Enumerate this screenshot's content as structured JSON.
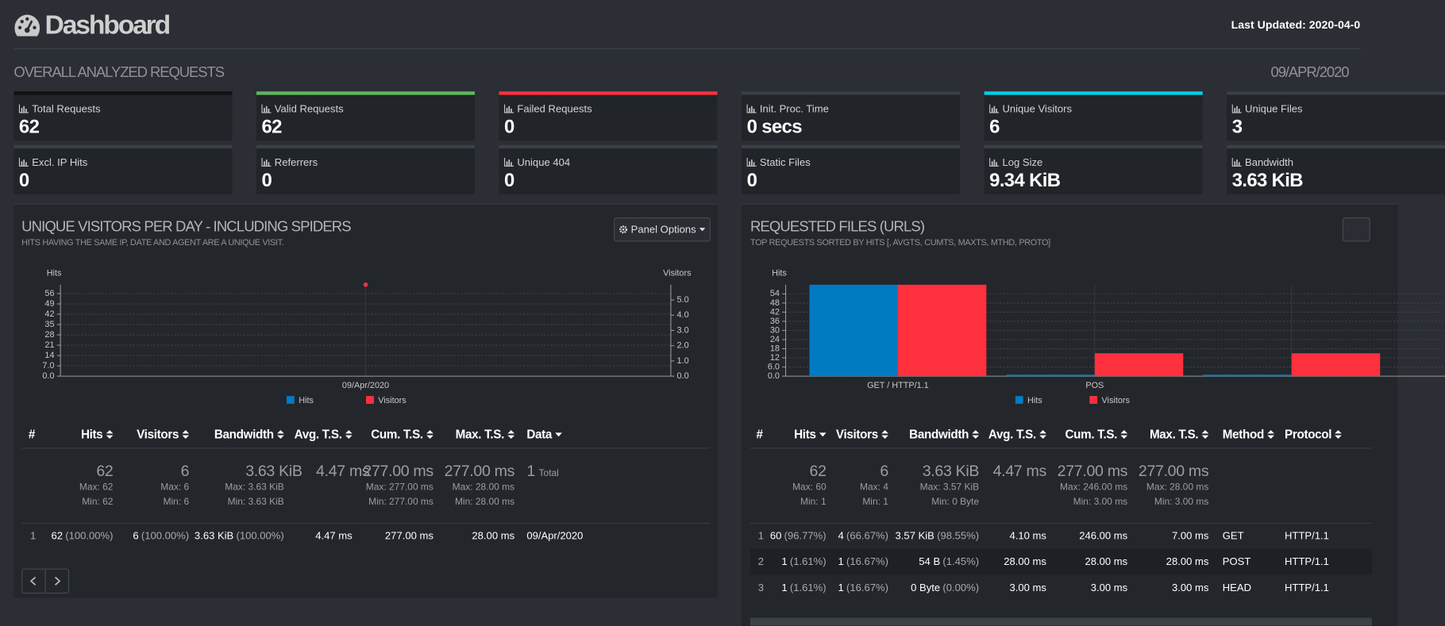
{
  "header": {
    "title": "Dashboard",
    "last_updated": "Last Updated: 2020-04-0"
  },
  "overview": {
    "title": "OVERALL ANALYZED REQUESTS",
    "date": "09/APR/2020",
    "cards": [
      {
        "label": "Total Requests",
        "value": "62",
        "color": "#101113"
      },
      {
        "label": "Valid Requests",
        "value": "62",
        "color": "#5cb85c"
      },
      {
        "label": "Failed Requests",
        "value": "0",
        "color": "#ff303e"
      },
      {
        "label": "Init. Proc. Time",
        "value": "0 secs",
        "color": "#3b3f46"
      },
      {
        "label": "Unique Visitors",
        "value": "6",
        "color": "#00d1e8"
      },
      {
        "label": "Unique Files",
        "value": "3",
        "color": "#3b3f46"
      },
      {
        "label": "Excl. IP Hits",
        "value": "0",
        "color": "#3b3f46"
      },
      {
        "label": "Referrers",
        "value": "0",
        "color": "#3b3f46"
      },
      {
        "label": "Unique 404",
        "value": "0",
        "color": "#3b3f46"
      },
      {
        "label": "Static Files",
        "value": "0",
        "color": "#3b3f46"
      },
      {
        "label": "Log Size",
        "value": "9.34 KiB",
        "color": "#3b3f46"
      },
      {
        "label": "Bandwidth",
        "value": "3.63 KiB",
        "color": "#3b3f46"
      }
    ]
  },
  "panels": [
    {
      "title": "UNIQUE VISITORS PER DAY - INCLUDING SPIDERS",
      "subtitle": "HITS HAVING THE SAME IP, DATE AND AGENT ARE A UNIQUE VISIT.",
      "button": "Panel Options",
      "chart": {
        "type": "line",
        "y_label": "Hits",
        "y2_label": "Visitors",
        "categories": [
          "09/Apr/2020"
        ],
        "series": [
          {
            "name": "Hits",
            "color": "#007bc2",
            "values": [
              62
            ]
          },
          {
            "name": "Visitors",
            "color": "#ff303e",
            "values": [
              6
            ],
            "axis": "y2"
          }
        ],
        "ylim": [
          0,
          62
        ],
        "yticks": [
          {
            "value": 0,
            "label": "0.0"
          },
          {
            "value": 7,
            "label": "7.0"
          },
          14,
          21,
          28,
          35,
          42,
          49,
          56
        ],
        "y2lim": [
          0,
          6
        ],
        "y2ticks": [
          {
            "value": 0,
            "label": "0.0"
          },
          {
            "value": 1,
            "label": "1.0"
          },
          {
            "value": 2,
            "label": "2.0"
          },
          {
            "value": 3,
            "label": "3.0"
          },
          {
            "value": 4,
            "label": "4.0"
          },
          {
            "value": 5,
            "label": "5.0"
          }
        ],
        "grid": true
      },
      "table": {
        "headers": [
          "#",
          "Hits",
          "Visitors",
          "Bandwidth",
          "Avg. T.S.",
          "Cum. T.S.",
          "Max. T.S.",
          "Data"
        ],
        "summary": [
          {
            "value": "62",
            "max": "Max: 62",
            "min": "Min: 62"
          },
          {
            "value": "6",
            "max": "Max: 6",
            "min": "Min: 6"
          },
          {
            "value": "3.63 KiB",
            "max": "Max: 3.63 KiB",
            "min": "Min: 3.63 KiB"
          },
          {
            "value": "4.47 ms"
          },
          {
            "value": "277.00 ms",
            "max": "Max: 277.00 ms",
            "min": "Min: 277.00 ms"
          },
          {
            "value": "277.00 ms",
            "max": "Max: 28.00 ms",
            "min": "Min: 28.00 ms"
          },
          {
            "value": "1",
            "note": "Total"
          }
        ],
        "rows": [
          [
            "1",
            {
              "value": "62",
              "pct": "(100.00%)"
            },
            {
              "value": "6",
              "pct": "(100.00%)"
            },
            {
              "value": "3.63 KiB",
              "pct": "(100.00%)"
            },
            "4.47 ms",
            "277.00 ms",
            "28.00 ms",
            "09/Apr/2020"
          ]
        ]
      }
    },
    {
      "title": "REQUESTED FILES (URLS)",
      "subtitle": "TOP REQUESTS SORTED BY HITS [, AVGTS, CUMTS, MAXTS, MTHD, PROTO]",
      "chart": {
        "type": "bar",
        "y_label": "Hits",
        "categories": [
          "GET / HTTP/1.1",
          "POS",
          null
        ],
        "series": [
          {
            "name": "Hits",
            "color": "#007bc2",
            "values": [
              60,
              1,
              1
            ]
          },
          {
            "name": "Visitors",
            "color": "#ff303e",
            "values": [
              4,
              1,
              1
            ],
            "axis": "y2"
          }
        ],
        "ylim": [
          0,
          60
        ],
        "yticks": [
          {
            "value": 0,
            "label": "0.0"
          },
          {
            "value": 6,
            "label": "6.0"
          },
          12,
          18,
          24,
          30,
          36,
          42,
          48,
          54
        ],
        "y2lim": [
          0,
          4
        ],
        "grid": true
      },
      "table": {
        "headers": [
          "#",
          "Hits",
          "Visitors",
          "Bandwidth",
          "Avg. T.S.",
          "Cum. T.S.",
          "Max. T.S.",
          "Method",
          "Protocol"
        ],
        "summary": [
          {
            "value": "62",
            "max": "Max: 60",
            "min": "Min: 1"
          },
          {
            "value": "6",
            "max": "Max: 4",
            "min": "Min: 1"
          },
          {
            "value": "3.63 KiB",
            "max": "Max: 3.57 KiB",
            "min": "Min: 0 Byte"
          },
          {
            "value": "4.47 ms"
          },
          {
            "value": "277.00 ms",
            "max": "Max: 246.00 ms",
            "min": "Min: 3.00 ms"
          },
          {
            "value": "277.00 ms",
            "max": "Max: 28.00 ms",
            "min": "Min: 3.00 ms"
          }
        ],
        "rows": [
          [
            "1",
            {
              "value": "60",
              "pct": "(96.77%)"
            },
            {
              "value": "4",
              "pct": "(66.67%)"
            },
            {
              "value": "3.57 KiB",
              "pct": "(98.55%)"
            },
            "4.10 ms",
            "246.00 ms",
            "7.00 ms",
            "GET",
            "HTTP/1.1"
          ],
          [
            "2",
            {
              "value": "1",
              "pct": "(1.61%)"
            },
            {
              "value": "1",
              "pct": "(16.67%)"
            },
            {
              "value": "54 B",
              "pct": "(1.45%)"
            },
            "28.00 ms",
            "28.00 ms",
            "28.00 ms",
            "POST",
            "HTTP/1.1"
          ],
          [
            "3",
            {
              "value": "1",
              "pct": "(1.61%)"
            },
            {
              "value": "1",
              "pct": "(16.67%)"
            },
            {
              "value": "0 Byte",
              "pct": "(0.00%)"
            },
            "3.00 ms",
            "3.00 ms",
            "3.00 ms",
            "HEAD",
            "HTTP/1.1"
          ]
        ]
      }
    }
  ]
}
